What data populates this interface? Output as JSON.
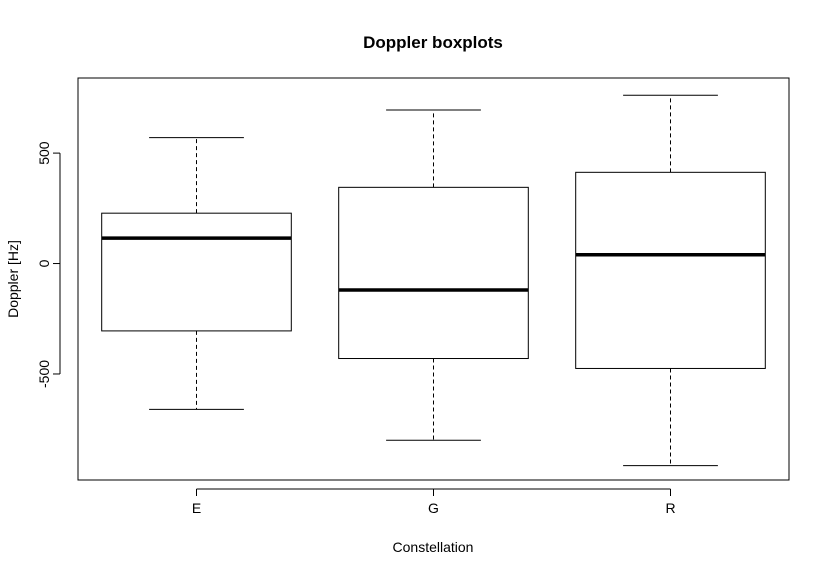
{
  "chart_data": {
    "type": "boxplot",
    "title": "Doppler boxplots",
    "xlabel": "Constellation",
    "ylabel": "Doppler [Hz]",
    "ylim": [
      -980,
      840
    ],
    "y_ticks": [
      -500,
      0,
      500
    ],
    "y_tick_labels": [
      "-500",
      "0",
      "500"
    ],
    "categories": [
      "E",
      "G",
      "R"
    ],
    "boxes": [
      {
        "name": "E",
        "whisker_low": -660,
        "q1": -305,
        "median": 115,
        "q3": 228,
        "whisker_high": 570
      },
      {
        "name": "G",
        "whisker_low": -800,
        "q1": -430,
        "median": -120,
        "q3": 345,
        "whisker_high": 695
      },
      {
        "name": "R",
        "whisker_low": -915,
        "q1": -475,
        "median": 40,
        "q3": 413,
        "whisker_high": 762
      }
    ],
    "grid": false,
    "legend": false
  }
}
